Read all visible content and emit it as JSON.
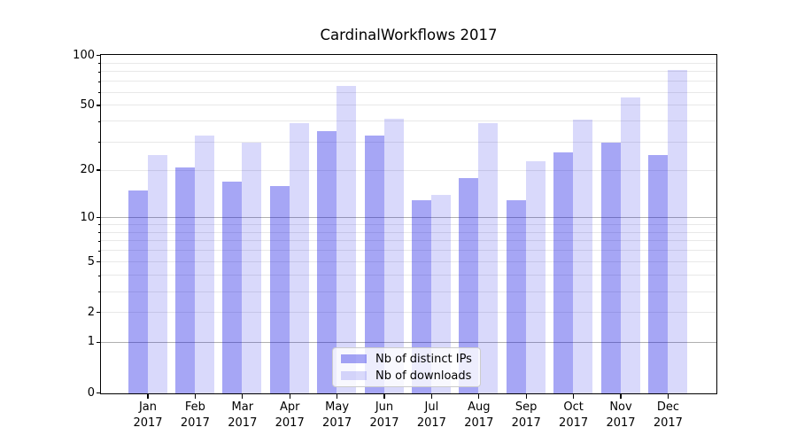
{
  "title": "CardinalWorkflows 2017",
  "chart_data": {
    "type": "bar",
    "title": "CardinalWorkflows 2017",
    "categories": [
      "Jan 2017",
      "Feb 2017",
      "Mar 2017",
      "Apr 2017",
      "May 2017",
      "Jun 2017",
      "Jul 2017",
      "Aug 2017",
      "Sep 2017",
      "Oct 2017",
      "Nov 2017",
      "Dec 2017"
    ],
    "series": [
      {
        "key": "distinct-ips",
        "name": "Nb of distinct IPs",
        "color": "#0000e1",
        "alpha": 0.35,
        "values": [
          15,
          21,
          17,
          16,
          35,
          33,
          13,
          18,
          13,
          26,
          30,
          25
        ]
      },
      {
        "key": "downloads",
        "name": "Nb of downloads",
        "color": "#0000e1",
        "alpha": 0.15,
        "values": [
          25,
          33,
          30,
          39,
          66,
          42,
          14,
          39,
          23,
          41,
          56,
          82
        ]
      }
    ],
    "yscale": "log1p",
    "ylim": [
      0,
      100
    ],
    "yticks": [
      0,
      1,
      2,
      5,
      10,
      20,
      50,
      100
    ],
    "major_gridlines": [
      1,
      10,
      100
    ],
    "minor_ticks": [
      3,
      4,
      6,
      7,
      8,
      9,
      30,
      40,
      60,
      70,
      80,
      90
    ],
    "grid": "horizontal",
    "legend_position": "lower center",
    "colors": {
      "spine": "#000000",
      "major_grid": "#b0b0b0",
      "minor_grid": "#e8e8e8",
      "legend_border": "#cccccc"
    }
  }
}
